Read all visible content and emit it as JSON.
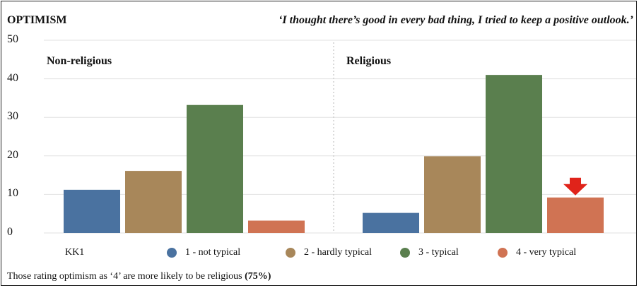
{
  "header": {
    "title": "OPTIMISM",
    "quote": "‘I thought there’s good in every bad thing, I tried to keep a positive outlook.’"
  },
  "chart_data": {
    "type": "bar",
    "categories": [
      "1 - not typical",
      "2 - hardly typical",
      "3 - typical",
      "4 - very typical"
    ],
    "panels": [
      {
        "name": "Non-religious",
        "values": [
          11.2,
          16.1,
          33.2,
          3.2
        ]
      },
      {
        "name": "Religious",
        "values": [
          5.2,
          19.9,
          41.0,
          9.2
        ]
      }
    ],
    "ylim": [
      0,
      50
    ],
    "yticks": [
      0,
      10,
      20,
      30,
      40,
      50
    ],
    "colors": [
      "#4a72a0",
      "#a8875a",
      "#5a7f4e",
      "#d07353"
    ],
    "grid": true,
    "highlight": {
      "panel": 1,
      "category": 3,
      "marker": "red-down-arrow",
      "color": "#e0231a"
    }
  },
  "legend": {
    "label": "KK1",
    "items": [
      {
        "label": "1 - not typical",
        "color": "#4a72a0"
      },
      {
        "label": "2 - hardly typical",
        "color": "#a8875a"
      },
      {
        "label": "3 - typical",
        "color": "#5a7f4e"
      },
      {
        "label": "4 - very typical",
        "color": "#d07353"
      }
    ]
  },
  "footer": {
    "text": "Those rating optimism as ‘4’ are more likely to be religious ",
    "emphasis": "(75%)"
  }
}
